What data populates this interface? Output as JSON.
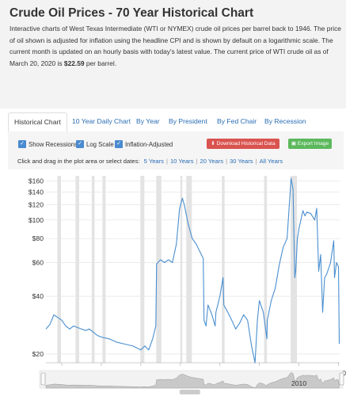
{
  "page": {
    "title": "Crude Oil Prices - 70 Year Historical Chart",
    "intro_text": "Interactive charts of West Texas Intermediate (WTI or NYMEX) crude oil prices per barrel back to 1946. The price of oil shown is adjusted for inflation using the headline CPI and is shown by default on a logarithmic scale. The current month is updated on an hourly basis with today's latest value. The current price of WTI crude oil as of March 20, 2020 is ",
    "current_price": "$22.59",
    "intro_suffix": " per barrel."
  },
  "tabs": [
    {
      "label": "Historical Chart",
      "active": true
    },
    {
      "label": "10 Year Daily Chart"
    },
    {
      "label": "By Year"
    },
    {
      "label": "By President"
    },
    {
      "label": "By Fed Chair"
    },
    {
      "label": "By Recession"
    }
  ],
  "controls": {
    "show_recessions": "Show Recessions",
    "log_scale": "Log Scale",
    "inflation_adjusted": "Inflation-Adjusted",
    "download_button": "Download Historical Data",
    "export_button": "Export Image",
    "zoom_prompt": "Click and drag in the plot area or select dates:",
    "zoom_options": [
      "5 Years",
      "10 Years",
      "20 Years",
      "30 Years",
      "All Years"
    ]
  },
  "chart_data": {
    "type": "line",
    "log_scale": true,
    "ylim": [
      18,
      170
    ],
    "y_ticks": [
      20,
      40,
      60,
      80,
      100,
      120,
      140,
      160
    ],
    "y_tick_labels": [
      "$20",
      "$40",
      "$60",
      "$80",
      "$100",
      "$120",
      "$140",
      "$160"
    ],
    "xlim": [
      1946,
      2020.3
    ],
    "x_ticks": [
      1950,
      1960,
      1970,
      1980,
      1990,
      2000,
      2010,
      2020
    ],
    "navigator_labels": [
      "2010"
    ],
    "grid": true,
    "line_color": "#4a8fd0",
    "recession_color": "#e3e3e3",
    "recessions": [
      [
        1948.9,
        1949.8
      ],
      [
        1953.5,
        1954.4
      ],
      [
        1957.6,
        1958.3
      ],
      [
        1960.3,
        1961.1
      ],
      [
        1969.9,
        1970.9
      ],
      [
        1973.9,
        1975.2
      ],
      [
        1980.0,
        1980.5
      ],
      [
        1981.5,
        1982.9
      ],
      [
        1990.5,
        1991.2
      ],
      [
        2001.2,
        2001.9
      ],
      [
        2007.9,
        2009.5
      ]
    ],
    "series": [
      {
        "x": [
          1946,
          1947,
          1948,
          1949,
          1950,
          1951,
          1952,
          1953,
          1954,
          1955,
          1956,
          1957,
          1958,
          1959,
          1960,
          1962,
          1964,
          1966,
          1968,
          1970,
          1971,
          1972,
          1973,
          1973.8,
          1974,
          1975,
          1976,
          1977,
          1978,
          1979,
          1979.8,
          1980.5,
          1981,
          1982,
          1983,
          1984,
          1985,
          1985.8,
          1986,
          1986.5,
          1987,
          1988,
          1988.8,
          1989,
          1990,
          1990.8,
          1991,
          1992,
          1993,
          1994,
          1995,
          1996,
          1997,
          1998,
          1998.9,
          1999.5,
          2000,
          2001,
          2001.9,
          2002,
          2003,
          2004,
          2005,
          2006,
          2007,
          2008,
          2008.5,
          2008.95,
          2009.2,
          2009.6,
          2010,
          2011,
          2011.5,
          2012,
          2013,
          2014,
          2014.5,
          2015,
          2015.5,
          2016,
          2016.5,
          2017,
          2018,
          2018.8,
          2019,
          2019.5,
          2020,
          2020.2
        ],
        "y": [
          27,
          28.5,
          32,
          31,
          30,
          28,
          27,
          28,
          27.5,
          27,
          26.5,
          27,
          26,
          25,
          24.5,
          24,
          23,
          22.5,
          22,
          21,
          22,
          21,
          24,
          28,
          59,
          62,
          60,
          62,
          60,
          75,
          115,
          130,
          120,
          95,
          80,
          75,
          68,
          63,
          30,
          28,
          36,
          32,
          28,
          33,
          40,
          50,
          36,
          33,
          30,
          27,
          29,
          32,
          30,
          22,
          18,
          30,
          38,
          33,
          24,
          30,
          38,
          44,
          58,
          72,
          80,
          165,
          145,
          50,
          55,
          80,
          90,
          112,
          105,
          110,
          108,
          100,
          115,
          54,
          66,
          33,
          50,
          52,
          60,
          78,
          50,
          60,
          57,
          22.59
        ]
      }
    ]
  }
}
